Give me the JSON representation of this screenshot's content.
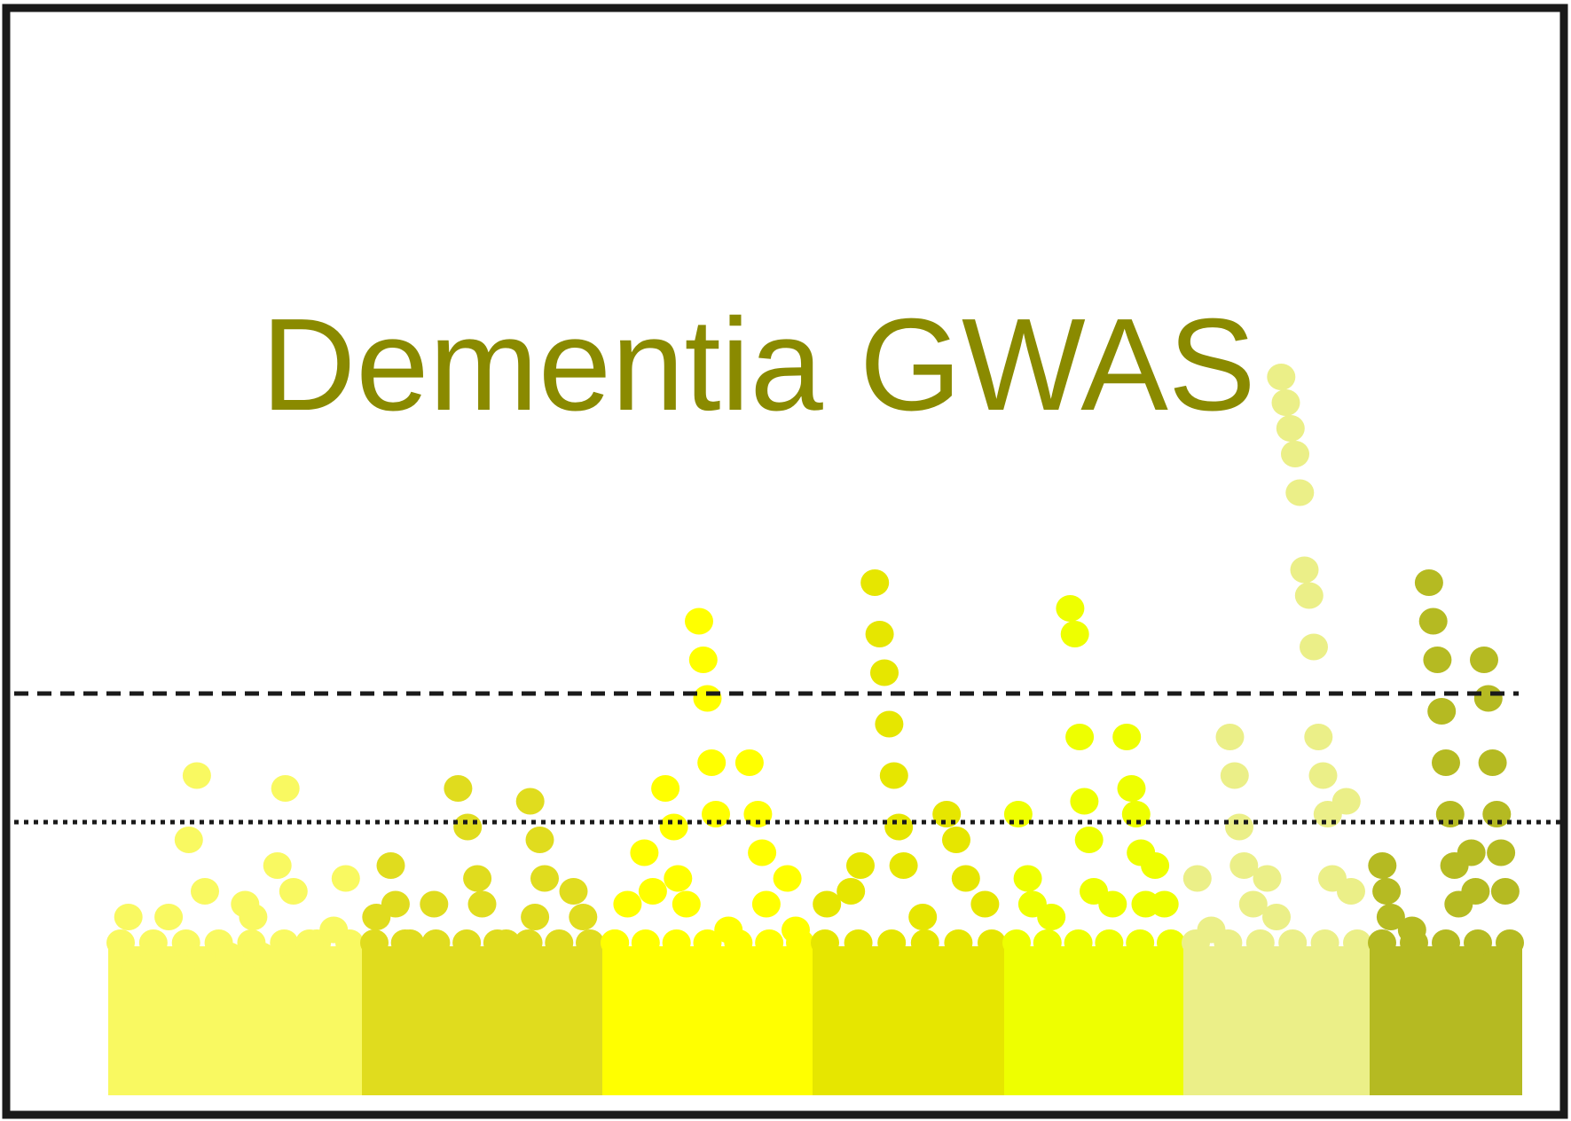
{
  "title": "Dementia GWAS",
  "colors": {
    "title": "#8a8a00",
    "frame": "#1a1a1a",
    "threshold_line": "#1a1a1a"
  },
  "thresholds": [
    {
      "style": "dashed"
    },
    {
      "style": "dotted"
    }
  ],
  "chart_data": {
    "type": "scatter",
    "description_style": "manhattan",
    "series": [
      {
        "color": "#f9f961",
        "points": [
          [
            0.5,
            1.6
          ],
          [
            0.7,
            1.2
          ],
          [
            0.9,
            1.1
          ],
          [
            1.5,
            1.6
          ],
          [
            1.8,
            1.2
          ],
          [
            2.0,
            2.2
          ],
          [
            2.2,
            2.7
          ],
          [
            2.4,
            1.8
          ],
          [
            3.0,
            1.3
          ],
          [
            3.4,
            1.7
          ],
          [
            3.6,
            1.6
          ],
          [
            3.8,
            1.3
          ],
          [
            4.2,
            2.0
          ],
          [
            4.6,
            1.8
          ],
          [
            4.4,
            2.6
          ],
          [
            5.0,
            1.4
          ],
          [
            5.6,
            1.5
          ],
          [
            5.9,
            1.9
          ]
        ]
      },
      {
        "color": "#e0dc1e",
        "points": [
          [
            0.3,
            1.6
          ],
          [
            0.6,
            2.0
          ],
          [
            0.7,
            1.7
          ],
          [
            1.0,
            1.4
          ],
          [
            1.5,
            1.7
          ],
          [
            2.0,
            2.6
          ],
          [
            2.2,
            2.3
          ],
          [
            2.4,
            1.9
          ],
          [
            2.5,
            1.7
          ],
          [
            3.0,
            1.4
          ],
          [
            3.5,
            2.5
          ],
          [
            3.7,
            2.2
          ],
          [
            3.8,
            1.9
          ],
          [
            3.6,
            1.6
          ],
          [
            4.4,
            1.8
          ],
          [
            4.6,
            1.6
          ]
        ]
      },
      {
        "color": "#ffff00",
        "points": [
          [
            0.3,
            1.4
          ],
          [
            0.6,
            1.7
          ],
          [
            1.0,
            2.1
          ],
          [
            1.2,
            1.8
          ],
          [
            1.5,
            2.6
          ],
          [
            1.7,
            2.3
          ],
          [
            1.8,
            1.9
          ],
          [
            2.0,
            1.7
          ],
          [
            2.3,
            3.9
          ],
          [
            2.4,
            3.6
          ],
          [
            2.5,
            3.3
          ],
          [
            2.6,
            2.8
          ],
          [
            2.7,
            2.4
          ],
          [
            3.0,
            1.5
          ],
          [
            3.5,
            2.8
          ],
          [
            3.7,
            2.4
          ],
          [
            3.8,
            2.1
          ],
          [
            3.9,
            1.7
          ],
          [
            4.4,
            1.9
          ],
          [
            4.6,
            1.5
          ]
        ]
      },
      {
        "color": "#e6e600",
        "points": [
          [
            0.3,
            1.7
          ],
          [
            0.8,
            1.8
          ],
          [
            1.0,
            2.0
          ],
          [
            1.3,
            4.2
          ],
          [
            1.4,
            3.8
          ],
          [
            1.5,
            3.5
          ],
          [
            1.6,
            3.1
          ],
          [
            1.7,
            2.7
          ],
          [
            1.8,
            2.3
          ],
          [
            1.9,
            2.0
          ],
          [
            2.3,
            1.6
          ],
          [
            2.8,
            2.4
          ],
          [
            3.0,
            2.2
          ],
          [
            3.2,
            1.9
          ],
          [
            3.6,
            1.7
          ]
        ]
      },
      {
        "color": "#eeff00",
        "points": [
          [
            0.3,
            2.4
          ],
          [
            0.5,
            1.9
          ],
          [
            0.6,
            1.7
          ],
          [
            1.0,
            1.6
          ],
          [
            1.4,
            4.0
          ],
          [
            1.5,
            3.8
          ],
          [
            1.6,
            3.0
          ],
          [
            1.7,
            2.5
          ],
          [
            1.8,
            2.2
          ],
          [
            1.9,
            1.8
          ],
          [
            2.3,
            1.7
          ],
          [
            2.6,
            3.0
          ],
          [
            2.7,
            2.6
          ],
          [
            2.8,
            2.4
          ],
          [
            2.9,
            2.1
          ],
          [
            3.0,
            1.7
          ],
          [
            3.2,
            2.0
          ],
          [
            3.4,
            1.7
          ]
        ]
      },
      {
        "color": "#ebef88",
        "points": [
          [
            0.3,
            1.9
          ],
          [
            0.6,
            1.5
          ],
          [
            1.0,
            3.0
          ],
          [
            1.1,
            2.7
          ],
          [
            1.2,
            2.3
          ],
          [
            1.3,
            2.0
          ],
          [
            1.5,
            1.7
          ],
          [
            1.8,
            1.9
          ],
          [
            2.0,
            1.6
          ],
          [
            2.1,
            5.8
          ],
          [
            2.2,
            5.6
          ],
          [
            2.3,
            5.4
          ],
          [
            2.4,
            5.2
          ],
          [
            2.5,
            4.9
          ],
          [
            2.6,
            4.3
          ],
          [
            2.7,
            4.1
          ],
          [
            2.8,
            3.7
          ],
          [
            2.9,
            3.0
          ],
          [
            3.0,
            2.7
          ],
          [
            3.1,
            2.4
          ],
          [
            3.2,
            1.9
          ],
          [
            3.5,
            2.5
          ],
          [
            3.6,
            1.8
          ]
        ]
      },
      {
        "color": "#b5ba22",
        "points": [
          [
            0.3,
            2.0
          ],
          [
            0.4,
            1.8
          ],
          [
            0.5,
            1.6
          ],
          [
            1.0,
            1.5
          ],
          [
            1.4,
            4.2
          ],
          [
            1.5,
            3.9
          ],
          [
            1.6,
            3.6
          ],
          [
            1.7,
            3.2
          ],
          [
            1.8,
            2.8
          ],
          [
            1.9,
            2.4
          ],
          [
            2.0,
            2.0
          ],
          [
            2.1,
            1.7
          ],
          [
            2.4,
            2.1
          ],
          [
            2.5,
            1.8
          ],
          [
            2.7,
            3.6
          ],
          [
            2.8,
            3.3
          ],
          [
            2.9,
            2.8
          ],
          [
            3.0,
            2.4
          ],
          [
            3.1,
            2.1
          ],
          [
            3.2,
            1.8
          ]
        ]
      }
    ]
  }
}
